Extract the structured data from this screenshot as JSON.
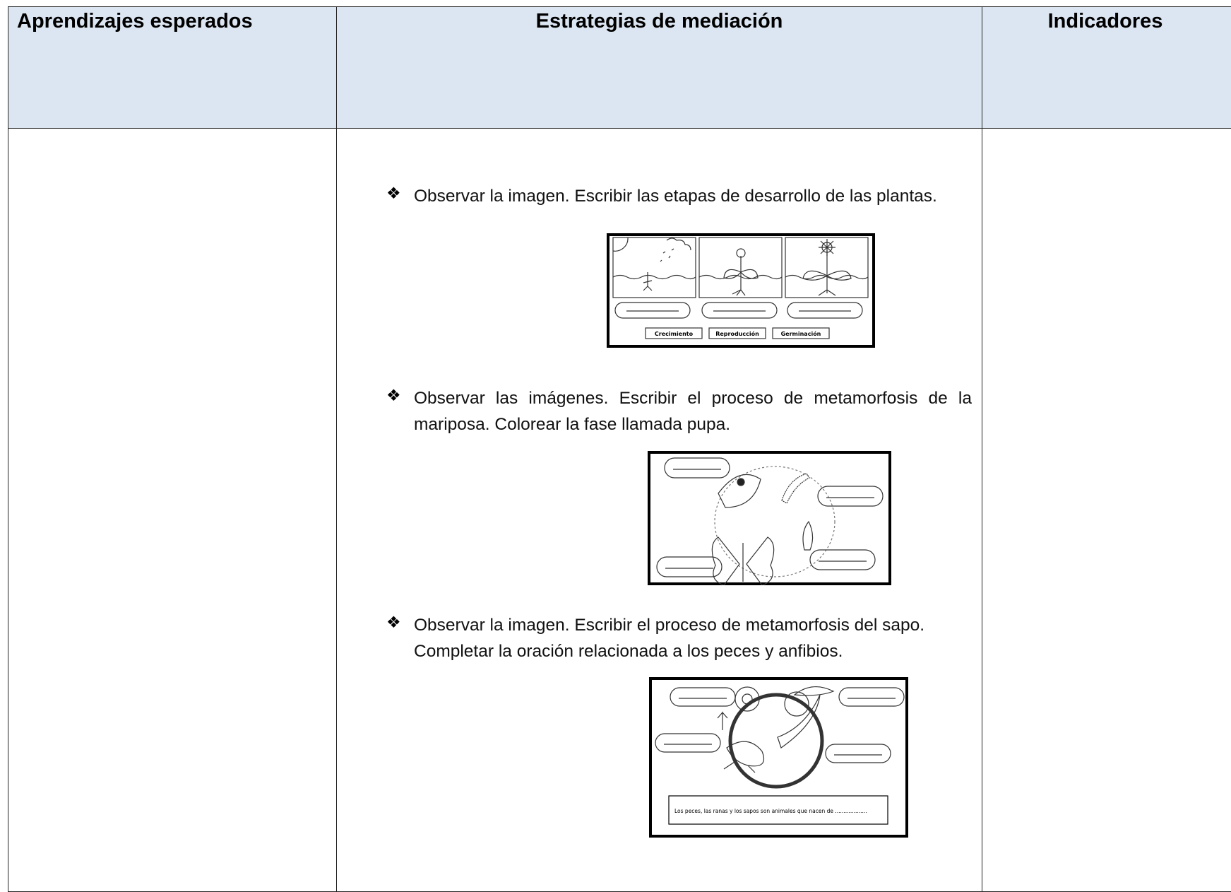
{
  "table": {
    "headers": [
      "Aprendizajes esperados",
      "Estrategias de mediación",
      "Indicadores"
    ],
    "strategies": [
      {
        "text": "Observar la imagen. Escribir las etapas de desarrollo de las plantas.",
        "image_labels": [
          "Crecimiento",
          "Reproducción",
          "Germinación"
        ]
      },
      {
        "text": "Observar las imágenes. Escribir el proceso de metamorfosis de la mariposa. Colorear la fase llamada pupa."
      },
      {
        "text": "Observar la imagen. Escribir el proceso de metamorfosis del sapo. Completar la oración relacionada a los peces y anfibios.",
        "image_sentence": "Los peces, las ranas y los sapos son animales que nacen de ..................."
      }
    ]
  }
}
